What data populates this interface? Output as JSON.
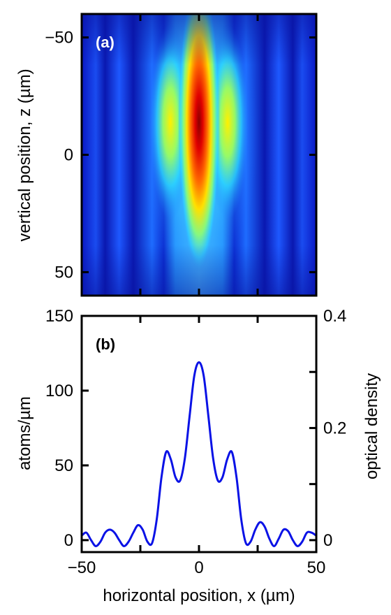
{
  "chart_data": [
    {
      "id": "a",
      "type": "heatmap",
      "panel_label": "(a)",
      "panel_label_color": "#ffffff",
      "ylabel": "vertical position, z (µm)",
      "xlim": [
        -50,
        50
      ],
      "ylim": [
        -60,
        60
      ],
      "y_inverted": true,
      "yticks": [
        -50,
        0,
        50
      ],
      "ytick_labels": [
        "−50",
        "0",
        "50"
      ],
      "xticks": [
        -25,
        0,
        25
      ],
      "colormap": "jet",
      "description_values": {
        "peak_z": -15,
        "fringe_positions_x": [
          -37,
          -25,
          -12,
          0,
          12,
          25,
          37
        ]
      }
    },
    {
      "id": "b",
      "type": "line",
      "panel_label": "(b)",
      "panel_label_color": "#000000",
      "xlabel": "horizontal position, x (µm)",
      "ylabel": "atoms/µm",
      "ylabel_right": "optical density",
      "xlim": [
        -50,
        50
      ],
      "ylim": [
        -8,
        150
      ],
      "ylim_right": [
        -0.02133,
        0.4
      ],
      "xticks": [
        -50,
        0,
        50
      ],
      "xtick_labels": [
        "−50",
        "0",
        "50"
      ],
      "yticks": [
        0,
        50,
        100,
        150
      ],
      "ytick_labels": [
        "0",
        "50",
        "100",
        "150"
      ],
      "yticks_right": [
        0,
        0.2,
        0.4
      ],
      "ytick_labels_right": [
        "0",
        "0.2",
        "0.4"
      ],
      "yticks_right_minor": [
        0.1,
        0.3
      ],
      "line_color": "#0a12e6",
      "series": [
        {
          "x": [
            -50,
            -48,
            -46,
            -44,
            -42,
            -40,
            -38,
            -36,
            -34,
            -32,
            -30,
            -28,
            -26,
            -24,
            -22,
            -20,
            -18,
            -16,
            -14,
            -12,
            -10,
            -8,
            -6,
            -4,
            -2,
            0,
            2,
            4,
            6,
            8,
            10,
            12,
            14,
            16,
            18,
            20,
            22,
            24,
            26,
            28,
            30,
            32,
            34,
            36,
            38,
            40,
            42,
            44,
            46,
            48,
            50
          ],
          "y": [
            3,
            5,
            0,
            -4,
            -1,
            5,
            7,
            5,
            0,
            -4,
            -1,
            5,
            10,
            7,
            -1,
            -2,
            14,
            42,
            59,
            54,
            42,
            40,
            55,
            83,
            110,
            119,
            110,
            83,
            55,
            40,
            42,
            54,
            59,
            42,
            14,
            -2,
            -1,
            7,
            12,
            9,
            1,
            -4,
            1,
            7,
            6,
            0,
            -4,
            -1,
            5,
            5,
            3
          ]
        }
      ]
    }
  ]
}
